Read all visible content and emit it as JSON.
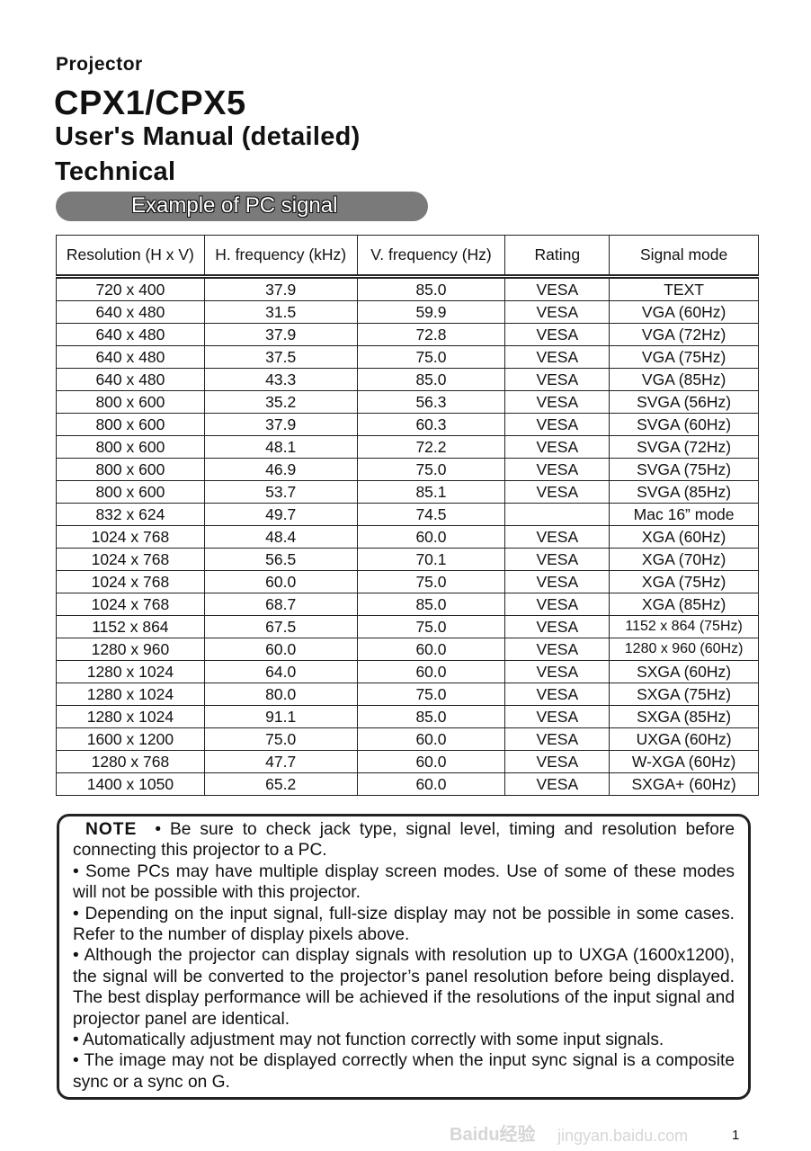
{
  "header": {
    "category": "Projector",
    "model": "CPX1/CPX5",
    "manual": "User's Manual (detailed)",
    "section": "Technical",
    "subsection": "Example of PC signal"
  },
  "table": {
    "columns": [
      "Resolution (H x V)",
      "H. frequency (kHz)",
      "V. frequency (Hz)",
      "Rating",
      "Signal mode"
    ],
    "rows": [
      [
        "720 x 400",
        "37.9",
        "85.0",
        "VESA",
        "TEXT"
      ],
      [
        "640 x 480",
        "31.5",
        "59.9",
        "VESA",
        "VGA (60Hz)"
      ],
      [
        "640 x 480",
        "37.9",
        "72.8",
        "VESA",
        "VGA (72Hz)"
      ],
      [
        "640 x 480",
        "37.5",
        "75.0",
        "VESA",
        "VGA (75Hz)"
      ],
      [
        "640 x 480",
        "43.3",
        "85.0",
        "VESA",
        "VGA (85Hz)"
      ],
      [
        "800 x 600",
        "35.2",
        "56.3",
        "VESA",
        "SVGA (56Hz)"
      ],
      [
        "800 x 600",
        "37.9",
        "60.3",
        "VESA",
        "SVGA (60Hz)"
      ],
      [
        "800 x 600",
        "48.1",
        "72.2",
        "VESA",
        "SVGA (72Hz)"
      ],
      [
        "800 x 600",
        "46.9",
        "75.0",
        "VESA",
        "SVGA (75Hz)"
      ],
      [
        "800 x 600",
        "53.7",
        "85.1",
        "VESA",
        "SVGA (85Hz)"
      ],
      [
        "832 x 624",
        "49.7",
        "74.5",
        "",
        "Mac 16” mode"
      ],
      [
        "1024 x 768",
        "48.4",
        "60.0",
        "VESA",
        "XGA (60Hz)"
      ],
      [
        "1024 x 768",
        "56.5",
        "70.1",
        "VESA",
        "XGA (70Hz)"
      ],
      [
        "1024 x 768",
        "60.0",
        "75.0",
        "VESA",
        "XGA (75Hz)"
      ],
      [
        "1024 x 768",
        "68.7",
        "85.0",
        "VESA",
        "XGA (85Hz)"
      ],
      [
        "1152 x 864",
        "67.5",
        "75.0",
        "VESA",
        "1152 x 864 (75Hz)"
      ],
      [
        "1280 x 960",
        "60.0",
        "60.0",
        "VESA",
        "1280 x 960 (60Hz)"
      ],
      [
        "1280 x 1024",
        "64.0",
        "60.0",
        "VESA",
        "SXGA (60Hz)"
      ],
      [
        "1280 x 1024",
        "80.0",
        "75.0",
        "VESA",
        "SXGA (75Hz)"
      ],
      [
        "1280 x 1024",
        "91.1",
        "85.0",
        "VESA",
        "SXGA (85Hz)"
      ],
      [
        "1600 x 1200",
        "75.0",
        "60.0",
        "VESA",
        "UXGA (60Hz)"
      ],
      [
        "1280 x 768",
        "47.7",
        "60.0",
        "VESA",
        "W-XGA (60Hz)"
      ],
      [
        "1400 x 1050",
        "65.2",
        "60.0",
        "VESA",
        "SXGA+ (60Hz)"
      ]
    ]
  },
  "note": {
    "label": "NOTE",
    "items": [
      "• Be sure to check jack type, signal level, timing and resolution before connecting this projector to a PC.",
      "• Some PCs may have multiple display screen modes. Use of some of these modes will not be possible with this projector.",
      "• Depending on the input signal, full-size display may not be possible in some cases. Refer to the number of display pixels above.",
      "• Although the projector can display signals with resolution up to UXGA (1600x1200), the signal will be converted to the projector’s panel resolution before being displayed. The best display performance will be achieved if the resolutions of the input signal and projector panel are identical.",
      "• Automatically adjustment may not function correctly with some input signals.",
      "• The image may not be displayed correctly when the input sync signal is a composite sync or a sync on G."
    ]
  },
  "page_number": "1",
  "watermark": {
    "logo": "Baidu经验",
    "url": "jingyan.baidu.com"
  }
}
